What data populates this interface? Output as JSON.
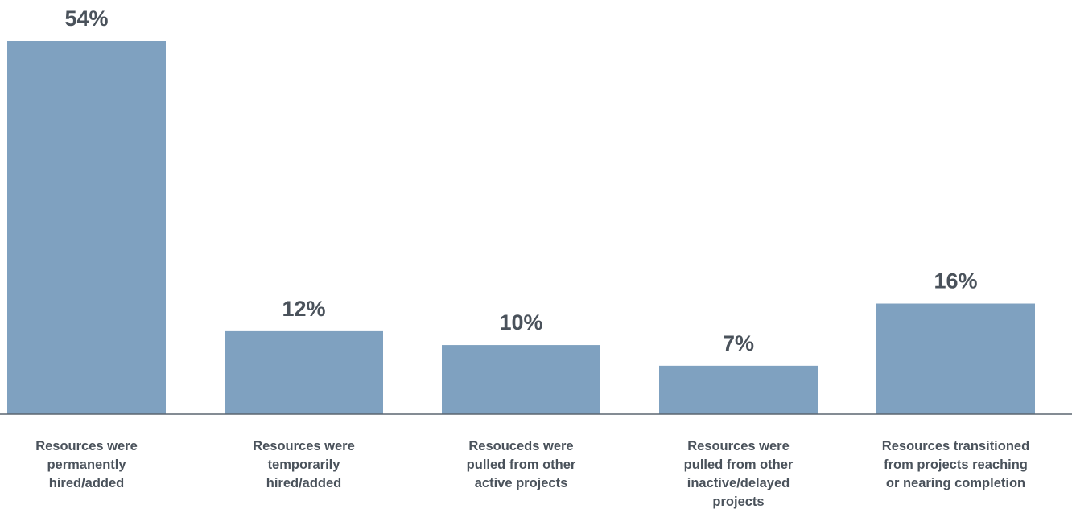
{
  "chart_data": {
    "type": "bar",
    "title": "",
    "xlabel": "",
    "ylabel": "",
    "ylim": [
      0,
      54
    ],
    "grid": false,
    "value_suffix": "%",
    "bar_color": "#7fa1c0",
    "text_color": "#4a525b",
    "categories": [
      [
        "Resources were",
        "permanently",
        "hired/added"
      ],
      [
        "Resources were",
        "temporarily",
        "hired/added"
      ],
      [
        "Resouceds were",
        "pulled from other",
        "active projects"
      ],
      [
        "Resources were",
        "pulled from other",
        "inactive/delayed",
        "projects"
      ],
      [
        "Resources transitioned",
        "from projects reaching",
        "or nearing completion"
      ]
    ],
    "values": [
      54,
      12,
      10,
      7,
      16
    ]
  }
}
